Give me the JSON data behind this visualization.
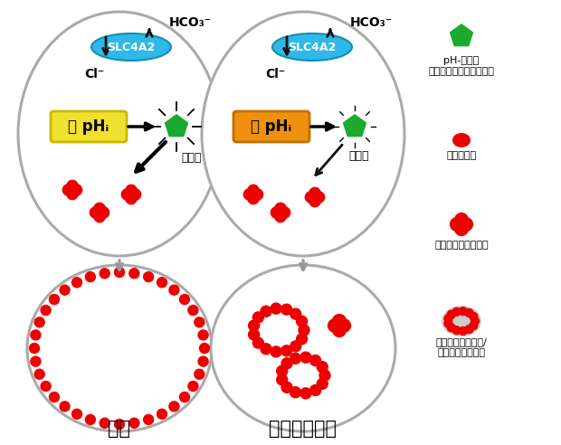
{
  "bg_color": "#ffffff",
  "cell_color": "#aaaaaa",
  "cell_lw": 2.2,
  "slc4a2_color": "#30b8e8",
  "slc4a2_text": "SLC4A2",
  "low_phi_color": "#f0e030",
  "low_phi_border": "#c8b800",
  "high_phi_color": "#f09010",
  "high_phi_border": "#c07000",
  "low_phi_text": "低 pHᵢ",
  "high_phi_text": "高 pHᵢ",
  "arrow_color": "#111111",
  "gray_arrow_color": "#999999",
  "hco3_text": "HCO₃⁻",
  "cl_text": "Cl⁻",
  "organise_text": "組織化",
  "green_color": "#1aaa30",
  "red_color": "#ee0000",
  "gray_color": "#cccccc",
  "normal_label": "正常",
  "mutant_label": "機能喪失変異",
  "legend_pentagon": "pH-感受性\nシステインプロテアーゼ",
  "legend_podosome": "ポドゾーム",
  "legend_cluster": "集積したポドゾーム",
  "legend_ring": "ポドゾームリング/\nポドゾームベルト"
}
